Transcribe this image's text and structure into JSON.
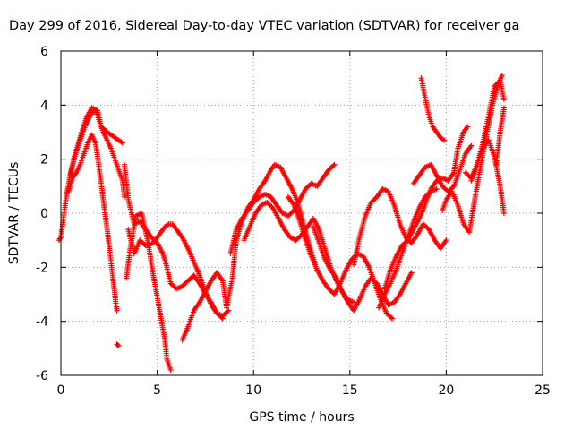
{
  "chart_data": {
    "type": "scatter",
    "title": "Day 299 of 2016, Sidereal Day-to-day VTEC variation (SDTVAR) for receiver ga",
    "xlabel": "GPS time / hours",
    "ylabel": "SDTVAR / TECUs",
    "xlim": [
      0,
      25
    ],
    "ylim": [
      -6,
      6
    ],
    "xticks": [
      "0",
      "5",
      "10",
      "15",
      "20",
      "25"
    ],
    "yticks": [
      "-6",
      "-4",
      "-2",
      "0",
      "2",
      "4",
      "6"
    ],
    "grid": true,
    "marker": "+",
    "color": "#ff0000",
    "series": [
      {
        "name": "s1",
        "x": [
          -0.1,
          0.0,
          0.3,
          0.5,
          0.8,
          1.0,
          1.3,
          1.6,
          1.9,
          2.1,
          2.4,
          2.6,
          2.8,
          3.0,
          3.2
        ],
        "y": [
          -1.0,
          -0.9,
          0.7,
          1.5,
          2.3,
          2.8,
          3.5,
          3.9,
          3.8,
          3.2,
          3.0,
          2.9,
          2.8,
          2.7,
          2.6
        ]
      },
      {
        "name": "s2",
        "x": [
          0.4,
          0.6,
          0.8,
          1.0,
          1.2,
          1.4,
          1.6,
          1.8,
          2.0,
          2.2,
          2.4,
          2.6,
          2.8,
          2.9
        ],
        "y": [
          0.8,
          1.3,
          1.5,
          1.8,
          2.2,
          2.6,
          2.9,
          2.6,
          1.6,
          0.5,
          -0.6,
          -1.8,
          -3.0,
          -3.6
        ]
      },
      {
        "name": "s3",
        "x": [
          0.5,
          0.7,
          1.0,
          1.3,
          1.6,
          1.8,
          2.0,
          2.2,
          2.4,
          2.6,
          2.8,
          3.0,
          3.2,
          3.3
        ],
        "y": [
          1.4,
          2.1,
          2.7,
          3.3,
          3.7,
          3.8,
          3.4,
          3.0,
          2.7,
          2.4,
          2.0,
          1.6,
          1.2,
          0.6
        ]
      },
      {
        "name": "s4",
        "x": [
          2.9,
          3.0
        ],
        "y": [
          -4.85,
          -4.9
        ]
      },
      {
        "name": "s5",
        "x": [
          3.3,
          3.5,
          3.8,
          4.1,
          4.4,
          4.7,
          5.0,
          5.3,
          5.5,
          5.7,
          6.0,
          6.3,
          6.6,
          6.9,
          7.2,
          7.5,
          7.8,
          8.1,
          8.4,
          8.7
        ],
        "y": [
          1.8,
          0.5,
          -0.4,
          -0.3,
          -0.6,
          -0.9,
          -1.1,
          -1.5,
          -2.0,
          -2.6,
          -2.8,
          -2.7,
          -2.5,
          -2.3,
          -2.6,
          -3.0,
          -3.3,
          -3.7,
          -3.8,
          -3.6
        ]
      },
      {
        "name": "s6",
        "x": [
          3.4,
          3.6,
          3.9,
          4.2,
          4.5,
          4.8,
          5.0,
          5.2,
          5.4,
          5.5,
          5.7
        ],
        "y": [
          -2.4,
          -1.3,
          -0.1,
          0.0,
          -1.0,
          -2.3,
          -3.1,
          -3.9,
          -4.7,
          -5.4,
          -5.8
        ]
      },
      {
        "name": "s7",
        "x": [
          3.5,
          3.8,
          4.1,
          4.4,
          4.8,
          5.1,
          5.4,
          5.6,
          5.8,
          6.0,
          6.3,
          6.6,
          6.9,
          7.2,
          7.5,
          7.8,
          8.1,
          8.4
        ],
        "y": [
          -0.6,
          -1.5,
          -1.0,
          -1.2,
          -1.1,
          -0.8,
          -0.5,
          -0.4,
          -0.4,
          -0.6,
          -0.9,
          -1.3,
          -1.8,
          -2.3,
          -2.9,
          -3.4,
          -3.7,
          -3.9
        ]
      },
      {
        "name": "s8",
        "x": [
          6.3,
          6.6,
          6.9,
          7.2,
          7.5,
          7.8,
          8.1,
          8.4,
          8.6,
          8.9,
          9.1,
          9.4,
          9.7,
          10.0,
          10.3,
          10.6,
          10.9,
          11.1,
          11.4,
          11.7,
          12.0,
          12.3,
          12.6,
          12.9,
          13.2
        ],
        "y": [
          -4.7,
          -4.2,
          -3.6,
          -3.3,
          -2.9,
          -2.5,
          -2.2,
          -2.5,
          -3.5,
          -2.4,
          -1.0,
          -0.3,
          0.2,
          0.5,
          0.9,
          1.2,
          1.6,
          1.8,
          1.7,
          1.3,
          0.9,
          0.4,
          -0.4,
          -1.2,
          -1.9
        ]
      },
      {
        "name": "s9",
        "x": [
          8.8,
          9.1,
          9.4,
          9.7,
          10.0,
          10.3,
          10.6,
          10.9,
          11.2,
          11.5,
          11.8,
          12.1,
          12.4,
          12.7,
          13.0,
          13.3,
          13.6,
          13.9,
          14.2
        ],
        "y": [
          -1.5,
          -0.6,
          -0.2,
          0.1,
          0.4,
          0.6,
          0.7,
          0.6,
          0.3,
          0.0,
          -0.1,
          0.1,
          0.5,
          0.9,
          1.1,
          1.0,
          1.3,
          1.6,
          1.8
        ]
      },
      {
        "name": "s10",
        "x": [
          9.5,
          9.8,
          10.1,
          10.4,
          10.7,
          11.0,
          11.3,
          11.6,
          11.9,
          12.2,
          12.5,
          12.8,
          13.1,
          13.4,
          13.7,
          14.0,
          14.3,
          14.6,
          14.9,
          15.2
        ],
        "y": [
          -1.0,
          -0.5,
          0.0,
          0.3,
          0.4,
          0.2,
          -0.2,
          -0.6,
          -0.9,
          -1.0,
          -0.8,
          -0.5,
          -0.2,
          -0.6,
          -1.3,
          -2.0,
          -2.5,
          -2.9,
          -3.2,
          -3.3
        ]
      },
      {
        "name": "s11",
        "x": [
          11.8,
          12.1,
          12.4,
          12.7,
          13.0,
          13.3,
          13.6,
          13.9,
          14.2,
          14.5,
          14.8,
          15.1,
          15.4,
          15.7,
          16.0,
          16.3,
          16.6,
          16.9,
          17.2
        ],
        "y": [
          0.6,
          0.3,
          -0.3,
          -1.0,
          -1.6,
          -2.1,
          -2.5,
          -2.8,
          -3.0,
          -2.6,
          -2.1,
          -1.7,
          -1.5,
          -1.6,
          -2.0,
          -2.6,
          -3.2,
          -3.7,
          -3.9
        ]
      },
      {
        "name": "s12",
        "x": [
          13.1,
          13.4,
          13.7,
          14.0,
          14.3,
          14.6,
          14.9,
          15.2,
          15.5,
          15.8,
          16.1,
          16.4,
          16.7,
          17.0,
          17.3,
          17.6,
          17.9,
          18.2
        ],
        "y": [
          -0.5,
          -1.1,
          -1.7,
          -2.1,
          -2.4,
          -2.9,
          -3.3,
          -3.6,
          -3.2,
          -2.7,
          -2.4,
          -2.6,
          -3.0,
          -3.4,
          -3.3,
          -3.0,
          -2.6,
          -2.2
        ]
      },
      {
        "name": "s13",
        "x": [
          15.2,
          15.5,
          15.8,
          16.1,
          16.4,
          16.7,
          17.0,
          17.3,
          17.6,
          17.9,
          18.2,
          18.5,
          18.8,
          19.1,
          19.4,
          19.7,
          20.0
        ],
        "y": [
          -1.9,
          -0.9,
          -0.1,
          0.4,
          0.6,
          0.9,
          0.8,
          0.3,
          -0.4,
          -0.9,
          -1.1,
          -0.8,
          -0.4,
          -0.6,
          -1.0,
          -1.3,
          -1.0
        ]
      },
      {
        "name": "s14",
        "x": [
          16.8,
          17.1,
          17.4,
          17.7,
          18.0,
          18.3,
          18.6,
          18.9,
          19.2,
          19.5,
          19.8,
          20.1,
          20.4,
          20.6,
          20.9,
          21.1
        ],
        "y": [
          -2.8,
          -2.1,
          -1.6,
          -1.2,
          -1.0,
          -0.6,
          -0.2,
          0.3,
          0.9,
          1.2,
          1.3,
          1.2,
          1.5,
          2.4,
          3.0,
          3.2
        ]
      },
      {
        "name": "s15",
        "x": [
          16.5,
          16.8,
          17.1,
          17.4,
          17.7,
          18.0,
          18.3,
          18.6,
          18.9,
          19.2,
          19.5
        ],
        "y": [
          -3.5,
          -3.0,
          -2.6,
          -2.1,
          -1.5,
          -0.9,
          -0.3,
          0.2,
          0.6,
          0.8,
          0.9
        ]
      },
      {
        "name": "s16",
        "x": [
          18.3,
          18.6,
          18.9,
          19.2,
          19.5,
          19.8,
          20.1,
          20.4,
          20.7,
          21.0,
          21.3
        ],
        "y": [
          1.1,
          1.4,
          1.7,
          1.8,
          1.4,
          1.0,
          0.8,
          1.0,
          1.6,
          2.2,
          2.5
        ]
      },
      {
        "name": "s17",
        "x": [
          18.7,
          18.9,
          19.1,
          19.3,
          19.5,
          19.7,
          19.9
        ],
        "y": [
          5.0,
          4.3,
          3.6,
          3.2,
          3.0,
          2.8,
          2.7
        ]
      },
      {
        "name": "s18",
        "x": [
          19.8,
          20.0,
          20.3,
          20.6,
          20.9,
          21.2,
          21.5,
          21.8,
          22.1,
          22.4,
          22.7,
          22.9
        ],
        "y": [
          0.1,
          0.5,
          0.8,
          0.3,
          -0.4,
          -0.7,
          0.6,
          1.8,
          2.9,
          4.0,
          4.8,
          5.1
        ]
      },
      {
        "name": "s19",
        "x": [
          21.0,
          21.3,
          21.6,
          21.9,
          22.2,
          22.5,
          22.8,
          23.0
        ],
        "y": [
          1.5,
          1.3,
          1.8,
          2.6,
          3.6,
          4.7,
          4.9,
          4.2
        ]
      },
      {
        "name": "s20",
        "x": [
          21.3,
          21.6,
          21.9,
          22.2,
          22.5,
          22.8,
          23.0
        ],
        "y": [
          1.2,
          1.8,
          2.4,
          2.7,
          2.1,
          1.0,
          0.0
        ]
      },
      {
        "name": "s21",
        "x": [
          22.6,
          22.8,
          23.0
        ],
        "y": [
          1.8,
          3.0,
          3.9
        ]
      }
    ]
  }
}
